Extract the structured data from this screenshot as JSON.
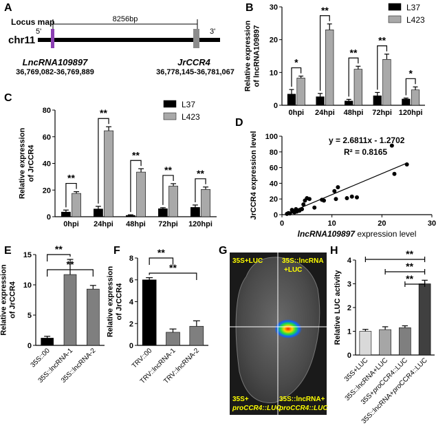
{
  "panels": {
    "A": {
      "label": "A",
      "locus_map_label": "Locus map",
      "distance_label": "8256bp",
      "chromosome": "chr11",
      "five_prime": "5'",
      "three_prime": "3'",
      "gene1_name": "LncRNA109897",
      "gene1_coords": "36,769,082-36,769,889",
      "gene2_name": "JrCCR4",
      "gene2_coords": "36,778,145-36,781,067",
      "gene1_color": "#8b3fb3",
      "gene2_color": "#8c8c8c"
    },
    "B": {
      "label": "B"
    },
    "C": {
      "label": "C"
    },
    "D": {
      "label": "D"
    },
    "E": {
      "label": "E"
    },
    "F": {
      "label": "F"
    },
    "G": {
      "label": "G",
      "q1": "35S+LUC",
      "q2a": "35S::lncRNA",
      "q2b": "+LUC",
      "q3a": "35S+",
      "q3b": "proCCR4::LUC",
      "q4a": "35S::lncRNA+",
      "q4b": "proCCR4::LUC",
      "label_color": "#ffff00"
    },
    "H": {
      "label": "H"
    }
  },
  "chart_data": [
    {
      "id": "B",
      "type": "bar",
      "ylabel": "Relative expression of lncRNA109897",
      "categories": [
        "0hpi",
        "24hpi",
        "48hpi",
        "72hpi",
        "120hpi"
      ],
      "ylim": [
        0,
        30
      ],
      "yticks": [
        0,
        10,
        20,
        30
      ],
      "series": [
        {
          "name": "L37",
          "color": "#000000",
          "values": [
            3.4,
            2.6,
            1.3,
            2.9,
            1.9
          ],
          "errors": [
            1.4,
            1.0,
            0.5,
            1.0,
            0.3
          ]
        },
        {
          "name": "L423",
          "color": "#a9a9a9",
          "values": [
            8.3,
            23.0,
            11.0,
            14.0,
            4.7
          ],
          "errors": [
            0.6,
            1.8,
            0.9,
            1.6,
            0.9
          ]
        }
      ],
      "significance": [
        "*",
        "**",
        "**",
        "**",
        "*"
      ]
    },
    {
      "id": "C",
      "type": "bar",
      "ylabel": "Relative expression of JrCCR4",
      "categories": [
        "0hpi",
        "24hpi",
        "48hpi",
        "72hpi",
        "120hpi"
      ],
      "ylim": [
        0,
        80
      ],
      "yticks": [
        0,
        20,
        40,
        60,
        80
      ],
      "series": [
        {
          "name": "L37",
          "color": "#000000",
          "values": [
            3.5,
            5.8,
            1.0,
            6.0,
            7.0
          ],
          "errors": [
            1.5,
            2.0,
            0.5,
            0.8,
            1.8
          ]
        },
        {
          "name": "L423",
          "color": "#a9a9a9",
          "values": [
            17.5,
            64.5,
            33.5,
            23.0,
            20.5
          ],
          "errors": [
            1.3,
            3.0,
            2.5,
            1.8,
            1.8
          ]
        }
      ],
      "significance": [
        "**",
        "**",
        "**",
        "**",
        "**"
      ]
    },
    {
      "id": "D",
      "type": "scatter",
      "xlabel_italic": "lncRNA109897",
      "xlabel_rest": " expression level",
      "ylabel": "JrCCR4 expression level",
      "xlim": [
        0,
        30
      ],
      "ylim": [
        0,
        100
      ],
      "xticks": [
        0,
        10,
        20,
        30
      ],
      "yticks": [
        0,
        20,
        40,
        60,
        80,
        100
      ],
      "equation": "y = 2.6811x - 1.2702",
      "r2": "R² = 0.8165",
      "fit": {
        "slope": 2.6811,
        "intercept": -1.2702,
        "x_range": [
          0.9,
          25
        ]
      },
      "points": [
        [
          1,
          1
        ],
        [
          1.3,
          2
        ],
        [
          1.6,
          1.5
        ],
        [
          2,
          6
        ],
        [
          2.2,
          4
        ],
        [
          2.5,
          3
        ],
        [
          2.8,
          7
        ],
        [
          3,
          4
        ],
        [
          3.2,
          5
        ],
        [
          3.5,
          5
        ],
        [
          4,
          7
        ],
        [
          4.3,
          13
        ],
        [
          4.6,
          18
        ],
        [
          5,
          21
        ],
        [
          5.5,
          20
        ],
        [
          6.5,
          9
        ],
        [
          8,
          19
        ],
        [
          8.4,
          18
        ],
        [
          10.5,
          30
        ],
        [
          11.2,
          35
        ],
        [
          10.8,
          20
        ],
        [
          13,
          21
        ],
        [
          14,
          23
        ],
        [
          15,
          22
        ],
        [
          22,
          88
        ],
        [
          22.5,
          52
        ],
        [
          25,
          64
        ]
      ]
    },
    {
      "id": "E",
      "type": "bar",
      "ylabel": "Relative expression of JrCCR4",
      "categories": [
        "35S::00",
        "35S::lncRNA-1",
        "35S::lncRNA-2"
      ],
      "ylim": [
        0,
        15
      ],
      "yticks": [
        0,
        5,
        10,
        15
      ],
      "values": [
        1.2,
        11.7,
        9.3
      ],
      "errors": [
        0.3,
        2.5,
        0.6
      ],
      "colors": [
        "#000000",
        "#7f7f7f",
        "#7f7f7f"
      ],
      "brackets": [
        {
          "from": 0,
          "to": 1,
          "label": "**"
        },
        {
          "from": 0,
          "to": 2,
          "label": "**"
        }
      ]
    },
    {
      "id": "F",
      "type": "bar",
      "ylabel": "Relative expression of JrCCR4",
      "categories": [
        "TRV::00",
        "TRV::lncRNA-1",
        "TRV::lncRNA-2"
      ],
      "ylim": [
        0,
        8
      ],
      "yticks": [
        0,
        2,
        4,
        6,
        8
      ],
      "values": [
        6.0,
        1.2,
        1.75
      ],
      "errors": [
        0.2,
        0.3,
        0.5
      ],
      "colors": [
        "#000000",
        "#7f7f7f",
        "#7f7f7f"
      ],
      "brackets": [
        {
          "from": 0,
          "to": 1,
          "label": "**"
        },
        {
          "from": 0,
          "to": 2,
          "label": "**"
        }
      ]
    },
    {
      "id": "H",
      "type": "bar",
      "ylabel": "Relative LUC activity",
      "categories": [
        [
          "35S+LUC"
        ],
        [
          "35S::lncRNA+LUC"
        ],
        [
          "35S+",
          "pro",
          "CCR4::LUC"
        ],
        [
          "35S::lncRNA+",
          "pro",
          "CCR4::LUC"
        ]
      ],
      "ylim": [
        0,
        4
      ],
      "yticks": [
        0,
        1,
        2,
        3,
        4
      ],
      "values": [
        1.0,
        1.07,
        1.15,
        3.0
      ],
      "errors": [
        0.08,
        0.12,
        0.08,
        0.15
      ],
      "colors": [
        "#d9d9d9",
        "#a6a6a6",
        "#7f7f7f",
        "#404040"
      ],
      "brackets": [
        {
          "from": 0,
          "to": 3,
          "label": "**"
        },
        {
          "from": 1,
          "to": 3,
          "label": "**"
        },
        {
          "from": 2,
          "to": 3,
          "label": "**"
        }
      ]
    }
  ]
}
